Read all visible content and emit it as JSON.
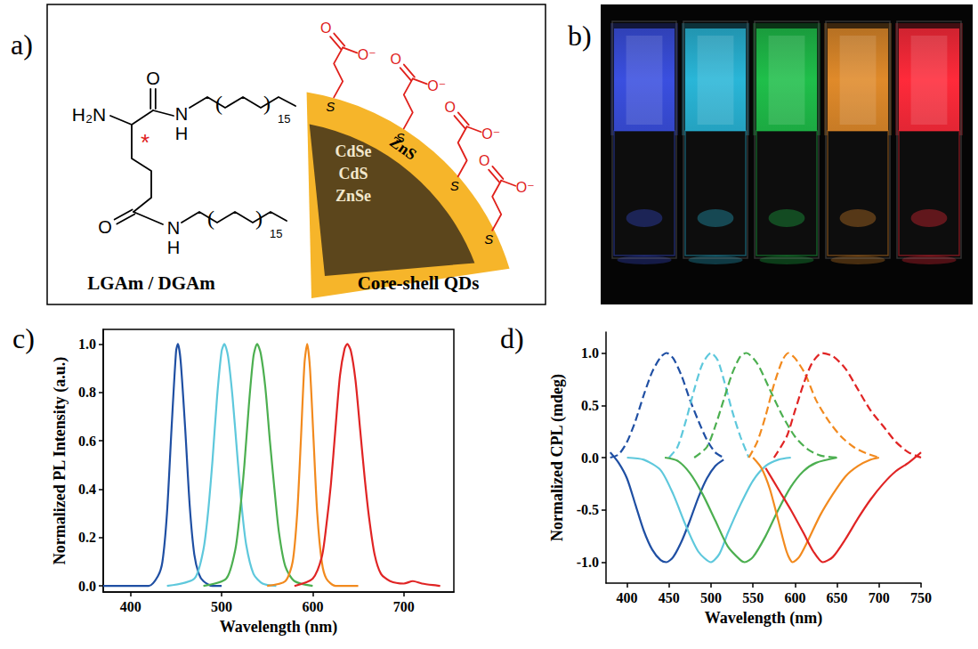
{
  "panels": {
    "a": {
      "label": "a)",
      "molecule": {
        "amine": "H₂N",
        "oxygen": "O",
        "nitrogen": "N",
        "hydrogen": "H",
        "repeat": "15",
        "stereocenter": "*",
        "caption": "LGAm / DGAm"
      },
      "quantum_dot": {
        "core": [
          "CdSe",
          "CdS",
          "ZnSe"
        ],
        "shell": "ZnS",
        "sulfur": "S",
        "oxygen": "O",
        "carboxylate": "O⁻",
        "caption": "Core-shell QDs"
      }
    },
    "b": {
      "label": "b)",
      "colors": [
        "#3a4fe0",
        "#29b6d8",
        "#1fbf4a",
        "#e08a2a",
        "#ff2a3a"
      ]
    }
  },
  "chart_data": [
    {
      "type": "line",
      "title": "c)",
      "x_label": "Wavelength (nm)",
      "y_label": "Normalized PL Intensity (a.u.)",
      "xlim": [
        370,
        755
      ],
      "xticks": [
        400,
        500,
        600,
        700
      ],
      "ylim": [
        -0.025,
        1.06
      ],
      "yticks": [
        {
          "value": 0,
          "label": "0.0"
        },
        0.2,
        0.4,
        0.6,
        0.8,
        {
          "value": 1,
          "label": "1.0"
        }
      ],
      "grid": false,
      "series": [
        {
          "color": "#1f4fa3",
          "x": [
            370,
            420,
            430,
            435,
            440,
            445,
            450,
            452,
            455,
            460,
            465,
            470,
            475,
            480,
            490,
            500
          ],
          "values": [
            0,
            0,
            0.04,
            0.1,
            0.3,
            0.65,
            0.97,
            1.0,
            0.93,
            0.65,
            0.33,
            0.13,
            0.05,
            0.02,
            0,
            0
          ]
        },
        {
          "color": "#5ec8dc",
          "x": [
            440,
            470,
            480,
            485,
            490,
            495,
            500,
            503,
            507,
            512,
            517,
            522,
            527,
            535,
            545,
            560
          ],
          "values": [
            0,
            0.03,
            0.15,
            0.3,
            0.52,
            0.78,
            0.97,
            1.0,
            0.95,
            0.78,
            0.55,
            0.33,
            0.17,
            0.05,
            0.01,
            0
          ]
        },
        {
          "color": "#4caf50",
          "x": [
            480,
            505,
            515,
            520,
            525,
            530,
            535,
            539,
            543,
            548,
            553,
            558,
            563,
            570,
            580,
            600
          ],
          "values": [
            0,
            0.03,
            0.15,
            0.3,
            0.5,
            0.75,
            0.95,
            1.0,
            0.96,
            0.82,
            0.6,
            0.4,
            0.22,
            0.08,
            0.02,
            0
          ]
        },
        {
          "color": "#f28a1e",
          "x": [
            550,
            570,
            578,
            583,
            587,
            591,
            594,
            597,
            601,
            605,
            610,
            615,
            625,
            650
          ],
          "values": [
            0,
            0.02,
            0.1,
            0.3,
            0.6,
            0.92,
            1.0,
            0.9,
            0.6,
            0.3,
            0.1,
            0.03,
            0,
            0
          ]
        },
        {
          "color": "#e02424",
          "x": [
            580,
            600,
            610,
            615,
            620,
            625,
            630,
            635,
            638,
            642,
            647,
            652,
            657,
            662,
            668,
            675,
            685,
            700,
            710,
            720,
            740
          ],
          "values": [
            0,
            0.03,
            0.12,
            0.25,
            0.42,
            0.65,
            0.87,
            0.98,
            1.0,
            0.97,
            0.85,
            0.65,
            0.45,
            0.28,
            0.13,
            0.05,
            0.02,
            0.01,
            0.02,
            0.01,
            0
          ]
        }
      ]
    },
    {
      "type": "line",
      "title": "d)",
      "x_label": "Wavelength (nm)",
      "y_label": "Normalized CPL (mdeg)",
      "xlim": [
        375,
        750
      ],
      "xticks": [
        400,
        450,
        500,
        550,
        600,
        650,
        700,
        750
      ],
      "ylim": [
        -1.2,
        1.2
      ],
      "yticks": [
        {
          "value": -1,
          "label": "-1.0"
        },
        -0.5,
        {
          "value": 0,
          "label": "0.0"
        },
        0.5,
        {
          "value": 1,
          "label": "1.0"
        }
      ],
      "grid": false,
      "series": [
        {
          "color": "#1f4fa3",
          "line_style": "solid",
          "x": [
            380,
            390,
            400,
            410,
            420,
            430,
            440,
            447,
            455,
            465,
            475,
            485,
            495,
            505,
            515
          ],
          "values": [
            0.05,
            -0.05,
            -0.2,
            -0.45,
            -0.7,
            -0.88,
            -0.98,
            -1.0,
            -0.95,
            -0.8,
            -0.6,
            -0.38,
            -0.2,
            -0.08,
            -0.02
          ]
        },
        {
          "color": "#1f4fa3",
          "line_style": "dashed",
          "x": [
            380,
            390,
            400,
            410,
            420,
            430,
            440,
            447,
            455,
            465,
            475,
            485,
            495,
            505,
            515
          ],
          "values": [
            0,
            0.03,
            0.15,
            0.35,
            0.6,
            0.82,
            0.96,
            1.0,
            0.95,
            0.78,
            0.55,
            0.35,
            0.17,
            0.05,
            0
          ]
        },
        {
          "color": "#5ec8dc",
          "line_style": "solid",
          "x": [
            400,
            420,
            440,
            455,
            470,
            485,
            500,
            510,
            520,
            535,
            550,
            565,
            580,
            595
          ],
          "values": [
            0,
            -0.02,
            -0.12,
            -0.35,
            -0.65,
            -0.9,
            -1.0,
            -0.92,
            -0.72,
            -0.45,
            -0.22,
            -0.08,
            -0.02,
            0
          ]
        },
        {
          "color": "#5ec8dc",
          "line_style": "dashed",
          "x": [
            450,
            460,
            470,
            480,
            490,
            500,
            508,
            515,
            525,
            535,
            545
          ],
          "values": [
            0,
            0.1,
            0.35,
            0.65,
            0.9,
            1.0,
            0.93,
            0.75,
            0.45,
            0.2,
            0
          ]
        },
        {
          "color": "#4caf50",
          "line_style": "solid",
          "x": [
            445,
            460,
            475,
            490,
            505,
            520,
            535,
            540,
            550,
            565,
            580,
            595,
            610,
            625,
            650
          ],
          "values": [
            0,
            -0.03,
            -0.15,
            -0.35,
            -0.6,
            -0.85,
            -0.98,
            -1.0,
            -0.95,
            -0.75,
            -0.5,
            -0.28,
            -0.13,
            -0.05,
            0
          ]
        },
        {
          "color": "#4caf50",
          "line_style": "dashed",
          "x": [
            480,
            495,
            505,
            515,
            525,
            535,
            542,
            555,
            570,
            585,
            600,
            615,
            630,
            650
          ],
          "values": [
            0,
            0.1,
            0.3,
            0.55,
            0.8,
            0.97,
            1.0,
            0.9,
            0.65,
            0.4,
            0.2,
            0.08,
            0.02,
            0
          ]
        },
        {
          "color": "#f28a1e",
          "line_style": "solid",
          "x": [
            550,
            560,
            570,
            580,
            590,
            597,
            605,
            615,
            630,
            645,
            660,
            675,
            690,
            700
          ],
          "values": [
            0,
            -0.1,
            -0.3,
            -0.6,
            -0.9,
            -1.0,
            -0.95,
            -0.8,
            -0.55,
            -0.35,
            -0.18,
            -0.08,
            -0.02,
            0
          ]
        },
        {
          "color": "#f28a1e",
          "line_style": "dashed",
          "x": [
            545,
            555,
            565,
            575,
            585,
            592,
            600,
            612,
            625,
            640,
            655,
            670,
            685,
            700
          ],
          "values": [
            0,
            0.15,
            0.4,
            0.7,
            0.93,
            1.0,
            0.95,
            0.8,
            0.55,
            0.35,
            0.2,
            0.1,
            0.04,
            0
          ]
        },
        {
          "color": "#e02424",
          "line_style": "solid",
          "x": [
            565,
            580,
            595,
            610,
            622,
            633,
            645,
            660,
            675,
            690,
            705,
            720,
            735,
            750
          ],
          "values": [
            -0.1,
            -0.3,
            -0.5,
            -0.72,
            -0.9,
            -1.0,
            -0.95,
            -0.78,
            -0.58,
            -0.4,
            -0.25,
            -0.13,
            -0.05,
            0.05
          ]
        },
        {
          "color": "#e02424",
          "line_style": "dashed",
          "x": [
            575,
            590,
            600,
            610,
            620,
            632,
            645,
            660,
            675,
            690,
            705,
            720,
            735,
            750
          ],
          "values": [
            0,
            0.2,
            0.45,
            0.7,
            0.9,
            1.0,
            0.97,
            0.85,
            0.65,
            0.45,
            0.3,
            0.15,
            0.05,
            0
          ]
        }
      ]
    }
  ]
}
